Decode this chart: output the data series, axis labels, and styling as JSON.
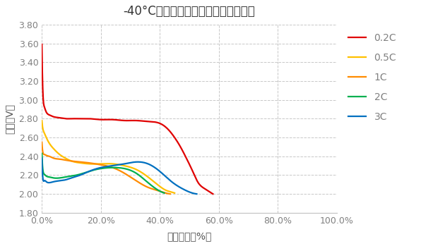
{
  "title": "-40°C下不同倍率放电的电池容量曲线",
  "xlabel": "电池容量（%）",
  "ylabel": "电压（V）",
  "ylim": [
    1.8,
    3.8
  ],
  "xlim": [
    0.0,
    1.0
  ],
  "yticks": [
    1.8,
    2.0,
    2.2,
    2.4,
    2.6,
    2.8,
    3.0,
    3.2,
    3.4,
    3.6,
    3.8
  ],
  "xticks": [
    0.0,
    0.2,
    0.4,
    0.6,
    0.8,
    1.0
  ],
  "xtick_labels": [
    "0.0%",
    "20.0%",
    "40.0%",
    "60.0%",
    "80.0%",
    "100.0%"
  ],
  "series": [
    {
      "label": "0.2C",
      "color": "#e00000",
      "x": [
        0.0,
        0.003,
        0.008,
        0.015,
        0.025,
        0.04,
        0.06,
        0.08,
        0.1,
        0.13,
        0.16,
        0.2,
        0.24,
        0.28,
        0.32,
        0.36,
        0.4,
        0.43,
        0.45,
        0.47,
        0.49,
        0.51,
        0.53,
        0.55,
        0.57,
        0.58
      ],
      "y": [
        3.59,
        3.12,
        2.93,
        2.87,
        2.84,
        2.82,
        2.81,
        2.8,
        2.8,
        2.8,
        2.8,
        2.79,
        2.79,
        2.78,
        2.78,
        2.77,
        2.75,
        2.68,
        2.6,
        2.5,
        2.38,
        2.25,
        2.12,
        2.06,
        2.02,
        2.0
      ]
    },
    {
      "label": "0.5C",
      "color": "#ffc000",
      "x": [
        0.0,
        0.003,
        0.008,
        0.015,
        0.025,
        0.04,
        0.06,
        0.08,
        0.1,
        0.13,
        0.16,
        0.2,
        0.24,
        0.28,
        0.32,
        0.36,
        0.4,
        0.42,
        0.44,
        0.45
      ],
      "y": [
        2.78,
        2.7,
        2.65,
        2.6,
        2.54,
        2.48,
        2.42,
        2.38,
        2.35,
        2.33,
        2.32,
        2.32,
        2.32,
        2.3,
        2.26,
        2.18,
        2.08,
        2.04,
        2.02,
        2.01
      ]
    },
    {
      "label": "1C",
      "color": "#ff8c00",
      "x": [
        0.0,
        0.003,
        0.008,
        0.015,
        0.025,
        0.04,
        0.06,
        0.08,
        0.1,
        0.13,
        0.16,
        0.2,
        0.24,
        0.28,
        0.32,
        0.36,
        0.4,
        0.42,
        0.435
      ],
      "y": [
        2.55,
        2.45,
        2.42,
        2.41,
        2.4,
        2.38,
        2.37,
        2.36,
        2.35,
        2.34,
        2.33,
        2.31,
        2.28,
        2.22,
        2.14,
        2.07,
        2.03,
        2.01,
        2.0
      ]
    },
    {
      "label": "2C",
      "color": "#00b050",
      "x": [
        0.0,
        0.003,
        0.008,
        0.015,
        0.025,
        0.04,
        0.06,
        0.08,
        0.1,
        0.13,
        0.16,
        0.2,
        0.24,
        0.28,
        0.32,
        0.36,
        0.4,
        0.415
      ],
      "y": [
        2.43,
        2.27,
        2.21,
        2.19,
        2.18,
        2.17,
        2.17,
        2.18,
        2.19,
        2.21,
        2.24,
        2.27,
        2.28,
        2.27,
        2.22,
        2.12,
        2.03,
        2.01
      ]
    },
    {
      "label": "3C",
      "color": "#0070c0",
      "x": [
        0.0,
        0.003,
        0.008,
        0.015,
        0.025,
        0.04,
        0.06,
        0.08,
        0.1,
        0.13,
        0.16,
        0.2,
        0.24,
        0.28,
        0.32,
        0.36,
        0.4,
        0.44,
        0.48,
        0.51,
        0.525
      ],
      "y": [
        2.38,
        2.18,
        2.14,
        2.13,
        2.12,
        2.13,
        2.14,
        2.15,
        2.17,
        2.2,
        2.24,
        2.28,
        2.3,
        2.32,
        2.34,
        2.32,
        2.24,
        2.13,
        2.05,
        2.01,
        2.0
      ]
    }
  ],
  "bg_color": "#ffffff",
  "grid_color": "#c8c8c8",
  "legend_fontsize": 10,
  "legend_text_color": "#808080",
  "title_fontsize": 12,
  "axis_label_fontsize": 10,
  "tick_fontsize": 9,
  "tick_color": "#808080",
  "spine_color": "#c0c0c0"
}
